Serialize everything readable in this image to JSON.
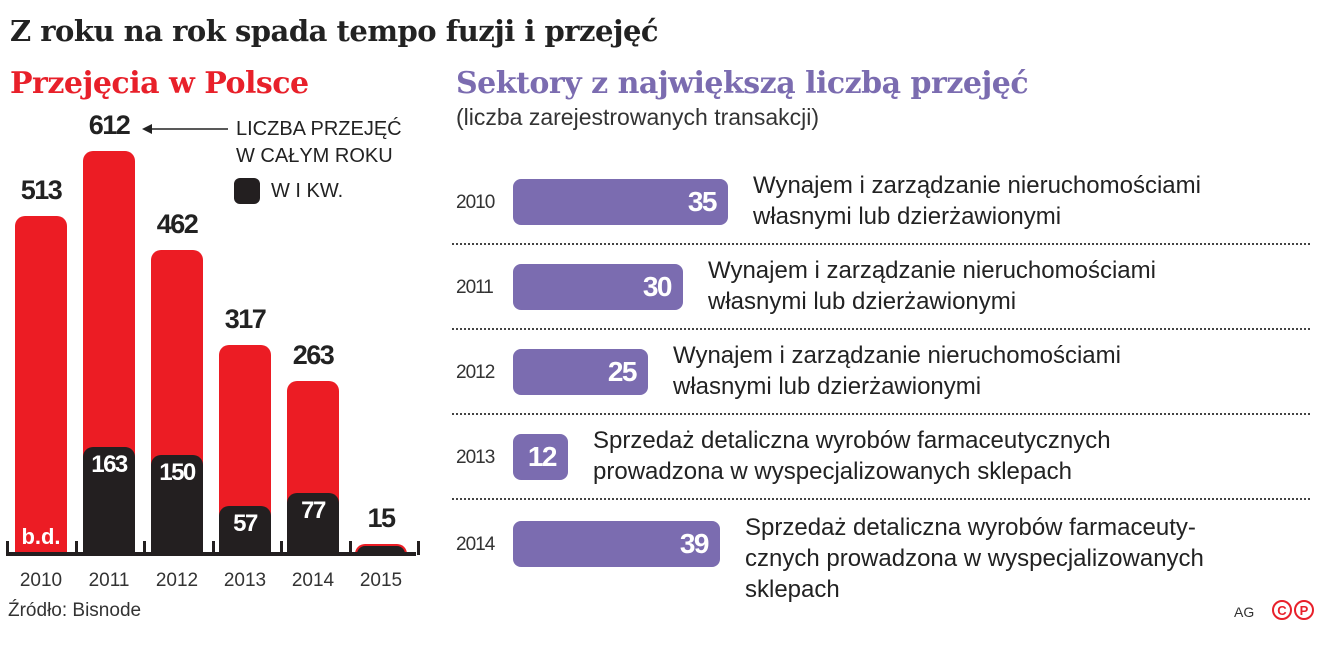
{
  "title": "Z roku na rok spada tempo fuzji i przejęć",
  "source": "Źródło: Bisnode",
  "credit": "AG",
  "logo": "©℗",
  "colors": {
    "red": "#ec1c24",
    "black": "#231f20",
    "purple": "#7b6cb0"
  },
  "chart_data": [
    {
      "type": "bar",
      "title": "Przejęcia w Polsce",
      "categories": [
        "2010",
        "2011",
        "2012",
        "2013",
        "2014",
        "2015"
      ],
      "series": [
        {
          "name": "LICZBA PRZEJĘĆ W CAŁYM ROKU",
          "values": [
            513,
            612,
            462,
            317,
            263,
            15
          ],
          "labels": [
            "513",
            "612",
            "462",
            "317",
            "263",
            "15"
          ]
        },
        {
          "name": "W I KW.",
          "values": [
            null,
            163,
            150,
            57,
            77,
            15
          ],
          "labels": [
            "b.d.",
            "163",
            "150",
            "57",
            "77",
            ""
          ]
        }
      ],
      "legend": {
        "total_line1": "LICZBA PRZEJĘĆ",
        "total_line2": "W CAŁYM ROKU",
        "q1": "W I KW."
      }
    },
    {
      "type": "bar",
      "orientation": "horizontal",
      "title": "Sektory z największą liczbą przejęć",
      "subtitle": "(liczba zarejestrowanych transakcji)",
      "rows": [
        {
          "year": "2010",
          "value": 35,
          "label": "35",
          "line1": "Wynajem i zarządzanie nieruchomościami",
          "line2": "własnymi lub dzierżawionymi",
          "line3": ""
        },
        {
          "year": "2011",
          "value": 30,
          "label": "30",
          "line1": "Wynajem i zarządzanie nieruchomościami",
          "line2": "własnymi lub dzierżawionymi",
          "line3": ""
        },
        {
          "year": "2012",
          "value": 25,
          "label": "25",
          "line1": "Wynajem i zarządzanie nieruchomościami",
          "line2": "własnymi lub dzierżawionymi",
          "line3": ""
        },
        {
          "year": "2013",
          "value": 12,
          "label": "12",
          "line1": "Sprzedaż detaliczna wyrobów farmaceutycznych",
          "line2": "prowadzona w wyspecjalizowanych sklepach",
          "line3": ""
        },
        {
          "year": "2014",
          "value": 39,
          "label": "39",
          "line1": "Sprzedaż detaliczna wyrobów farmaceuty-",
          "line2": "cznych prowadzona w wyspecjalizowanych",
          "line3": "sklepach"
        }
      ]
    }
  ]
}
